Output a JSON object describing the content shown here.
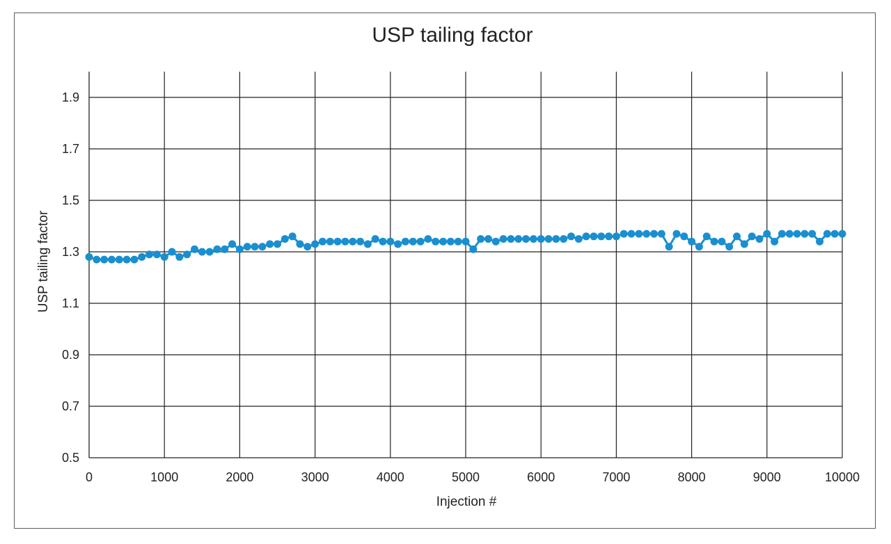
{
  "chart_data": {
    "type": "line",
    "title": "USP tailing factor",
    "xlabel": "Injection #",
    "ylabel": "USP tailing factor",
    "xlim": [
      0,
      10000
    ],
    "ylim": [
      0.5,
      2.0
    ],
    "xticks": [
      0,
      1000,
      2000,
      3000,
      4000,
      5000,
      6000,
      7000,
      8000,
      9000,
      10000
    ],
    "yticks": [
      0.5,
      0.7,
      0.9,
      1.1,
      1.3,
      1.5,
      1.7,
      1.9
    ],
    "grid": true,
    "series": [
      {
        "color": "#1a8fd0",
        "marker": "circle",
        "x": [
          0,
          100,
          200,
          300,
          400,
          500,
          600,
          700,
          800,
          900,
          1000,
          1100,
          1200,
          1300,
          1400,
          1500,
          1600,
          1700,
          1800,
          1900,
          2000,
          2100,
          2200,
          2300,
          2400,
          2500,
          2600,
          2700,
          2800,
          2900,
          3000,
          3100,
          3200,
          3300,
          3400,
          3500,
          3600,
          3700,
          3800,
          3900,
          4000,
          4100,
          4200,
          4300,
          4400,
          4500,
          4600,
          4700,
          4800,
          4900,
          5000,
          5100,
          5200,
          5300,
          5400,
          5500,
          5600,
          5700,
          5800,
          5900,
          6000,
          6100,
          6200,
          6300,
          6400,
          6500,
          6600,
          6700,
          6800,
          6900,
          7000,
          7100,
          7200,
          7300,
          7400,
          7500,
          7600,
          7700,
          7800,
          7900,
          8000,
          8100,
          8200,
          8300,
          8400,
          8500,
          8600,
          8700,
          8800,
          8900,
          9000,
          9100,
          9200,
          9300,
          9400,
          9500,
          9600,
          9700,
          9800,
          9900,
          10000
        ],
        "y": [
          1.28,
          1.27,
          1.27,
          1.27,
          1.27,
          1.27,
          1.27,
          1.28,
          1.29,
          1.29,
          1.28,
          1.3,
          1.28,
          1.29,
          1.31,
          1.3,
          1.3,
          1.31,
          1.31,
          1.33,
          1.31,
          1.32,
          1.32,
          1.32,
          1.33,
          1.33,
          1.35,
          1.36,
          1.33,
          1.32,
          1.33,
          1.34,
          1.34,
          1.34,
          1.34,
          1.34,
          1.34,
          1.33,
          1.35,
          1.34,
          1.34,
          1.33,
          1.34,
          1.34,
          1.34,
          1.35,
          1.34,
          1.34,
          1.34,
          1.34,
          1.34,
          1.31,
          1.35,
          1.35,
          1.34,
          1.35,
          1.35,
          1.35,
          1.35,
          1.35,
          1.35,
          1.35,
          1.35,
          1.35,
          1.36,
          1.35,
          1.36,
          1.36,
          1.36,
          1.36,
          1.36,
          1.37,
          1.37,
          1.37,
          1.37,
          1.37,
          1.37,
          1.32,
          1.37,
          1.36,
          1.34,
          1.32,
          1.36,
          1.34,
          1.34,
          1.32,
          1.36,
          1.33,
          1.36,
          1.35,
          1.37,
          1.34,
          1.37,
          1.37,
          1.37,
          1.37,
          1.37,
          1.34,
          1.37,
          1.37,
          1.37
        ]
      }
    ]
  }
}
